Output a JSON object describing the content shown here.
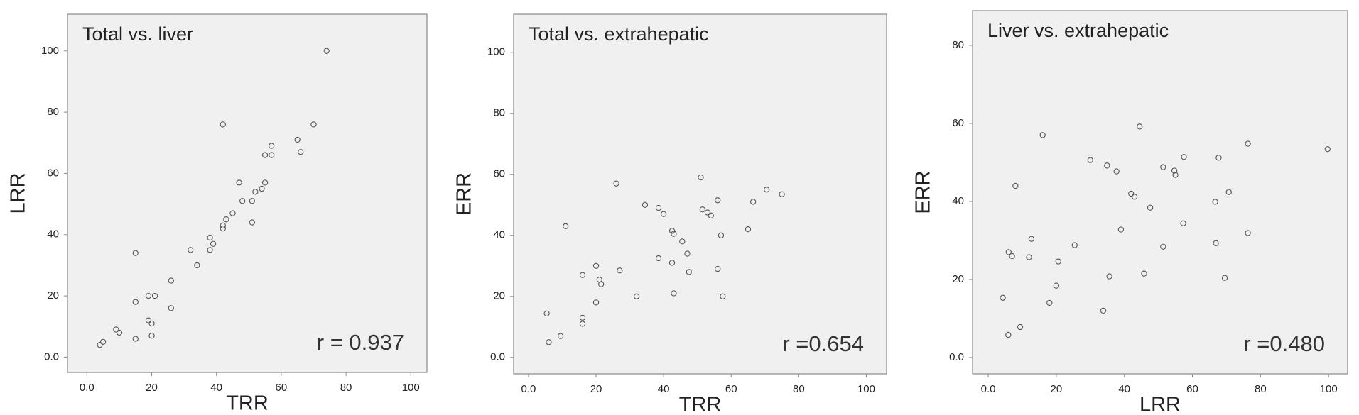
{
  "chart_data": [
    {
      "type": "scatter",
      "title": "Total vs. liver",
      "xlabel": "TRR",
      "ylabel": "LRR",
      "annotation": "r = 0.937",
      "color": "#555555",
      "x": [
        4,
        5,
        9,
        10,
        15,
        15,
        15,
        19,
        19,
        20,
        20,
        21,
        26,
        26,
        32,
        34,
        38,
        38,
        39,
        42,
        42,
        42,
        43,
        45,
        47,
        48,
        51,
        51,
        52,
        54,
        55,
        55,
        57,
        57,
        65,
        66,
        70,
        74
      ],
      "values": [
        4,
        5,
        9,
        8,
        6,
        34,
        18,
        20,
        12,
        11,
        7,
        20,
        25,
        16,
        35,
        30,
        35,
        39,
        37,
        76,
        42,
        43,
        45,
        47,
        57,
        51,
        51,
        44,
        54,
        55,
        57,
        66,
        66,
        69,
        71,
        67,
        76,
        100
      ],
      "xlim": [
        -6,
        105
      ],
      "ylim": [
        -5,
        112
      ],
      "xticks": [
        {
          "value": 0,
          "label": "0.0"
        },
        20,
        40,
        60,
        80,
        100
      ],
      "yticks": [
        {
          "value": 0,
          "label": "0.0"
        },
        20,
        40,
        60,
        80,
        100
      ]
    },
    {
      "type": "scatter",
      "title": "Total vs. extrahepatic",
      "xlabel": "TRR",
      "ylabel": "ERR",
      "annotation": "r =0.654",
      "color": "#555555",
      "x": [
        5.4,
        6,
        9.5,
        11,
        16,
        16,
        16,
        20,
        21,
        21.5,
        20,
        27,
        26,
        32,
        34.5,
        38.5,
        40,
        38.5,
        42.5,
        43,
        42.5,
        43,
        45.5,
        47,
        47.5,
        51,
        51.5,
        53,
        54,
        56,
        56,
        57,
        57.5,
        65,
        66.5,
        70.5,
        75
      ],
      "values": [
        14.4,
        5,
        7,
        43,
        27,
        13,
        11,
        30,
        25.5,
        24,
        18,
        28.5,
        57,
        20,
        50,
        49,
        47,
        32.5,
        41.5,
        40.5,
        31,
        21,
        38,
        34,
        28,
        59,
        48.5,
        47.5,
        46.5,
        51.5,
        29,
        40,
        20,
        42,
        51,
        55,
        53.5
      ],
      "xlim": [
        -4.4,
        106
      ],
      "ylim": [
        -5.4,
        112.5
      ],
      "xticks": [
        {
          "value": 0,
          "label": "0.0"
        },
        20,
        40,
        60,
        80,
        100
      ],
      "yticks": [
        {
          "value": 0,
          "label": "0.0"
        },
        20,
        40,
        60,
        80,
        100
      ]
    },
    {
      "type": "scatter",
      "title": "Liver vs. extrahepatic",
      "xlabel": "LRR",
      "ylabel": "ERR",
      "annotation": "r =0.480",
      "color": "#555555",
      "x": [
        4.3,
        5.9,
        6,
        7,
        8,
        9.4,
        12,
        12.7,
        16,
        18,
        20,
        20.6,
        25.4,
        30,
        34.9,
        33.8,
        35.6,
        37.7,
        39,
        42,
        43,
        44.5,
        45.8,
        47.6,
        51.4,
        51.4,
        54.7,
        55,
        57.5,
        57.3,
        66.7,
        66.9,
        67.7,
        69.5,
        70.7,
        76.3,
        76.3,
        99.7
      ],
      "values": [
        15.3,
        5.8,
        27,
        26,
        44,
        7.8,
        25.7,
        30.4,
        57,
        14,
        18.4,
        24.6,
        28.8,
        50.6,
        49.2,
        12,
        20.8,
        47.7,
        32.8,
        42,
        41.2,
        59.2,
        21.5,
        38.4,
        48.8,
        28.4,
        47.9,
        46.8,
        51.4,
        34.4,
        39.9,
        29.3,
        51.2,
        20.4,
        42.4,
        54.8,
        31.9,
        53.4
      ],
      "xlim": [
        -4.6,
        105.6
      ],
      "ylim": [
        -4.2,
        88.9
      ],
      "xticks": [
        {
          "value": 0,
          "label": "0.0"
        },
        20,
        40,
        60,
        80,
        100
      ],
      "yticks": [
        {
          "value": 0,
          "label": "0.0"
        },
        20,
        40,
        60,
        80
      ]
    }
  ]
}
